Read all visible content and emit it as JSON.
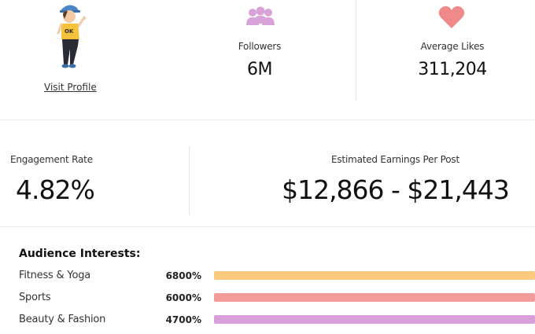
{
  "profile": {
    "visit_label": "Visit Profile",
    "avatar_name": "cartoon-avatar"
  },
  "followers": {
    "label": "Followers",
    "value": "6M",
    "icon": "group-icon",
    "icon_color": "#d9a2d9"
  },
  "likes": {
    "label": "Average Likes",
    "value": "311,204",
    "icon": "heart-icon",
    "icon_color": "#f08a8a"
  },
  "engagement": {
    "label": "Engagement Rate",
    "value": "4.82%"
  },
  "earnings": {
    "label": "Estimated Earnings Per Post",
    "value": "$12,866 - $21,443"
  },
  "interests": {
    "title": "Audience Interests:",
    "items": [
      {
        "label": "Fitness & Yoga",
        "percent": "6800%",
        "color": "#f9c97e",
        "fill": 1.0
      },
      {
        "label": "Sports",
        "percent": "6000%",
        "color": "#f39b9b",
        "fill": 1.0
      },
      {
        "label": "Beauty & Fashion",
        "percent": "4700%",
        "color": "#d9a0dc",
        "fill": 1.0
      }
    ]
  }
}
